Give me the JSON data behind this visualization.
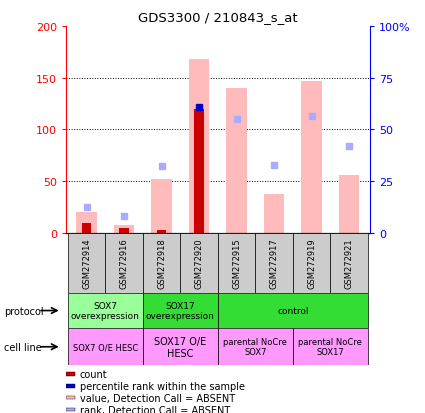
{
  "title": "GDS3300 / 210843_s_at",
  "samples": [
    "GSM272914",
    "GSM272916",
    "GSM272918",
    "GSM272920",
    "GSM272915",
    "GSM272917",
    "GSM272919",
    "GSM272921"
  ],
  "ylim_left": [
    0,
    200
  ],
  "ylim_right": [
    0,
    100
  ],
  "yticks_left": [
    0,
    50,
    100,
    150,
    200
  ],
  "yticks_right": [
    0,
    25,
    50,
    75,
    100
  ],
  "yticklabels_right": [
    "0",
    "25",
    "50",
    "75",
    "100%"
  ],
  "bar_pink_values": [
    20,
    8,
    52,
    168,
    140,
    38,
    147,
    56
  ],
  "bar_red_values": [
    10,
    5,
    3,
    120,
    0,
    0,
    0,
    0
  ],
  "dot_blue_values": [
    null,
    null,
    null,
    122,
    null,
    null,
    null,
    null
  ],
  "dot_purple_values": [
    25,
    16,
    65,
    null,
    110,
    66,
    113,
    84
  ],
  "bar_pink_color": "#ffbbbb",
  "bar_red_color": "#cc0000",
  "dot_blue_color": "#0000cc",
  "dot_purple_color": "#aaaaff",
  "grid_color": "#888888",
  "protocol_groups": [
    {
      "label": "SOX7\noverexpression",
      "cols": [
        0,
        1
      ],
      "color": "#99ff99"
    },
    {
      "label": "SOX17\noverexpression",
      "cols": [
        2,
        3
      ],
      "color": "#33dd33"
    },
    {
      "label": "control",
      "cols": [
        4,
        5,
        6,
        7
      ],
      "color": "#33dd33"
    }
  ],
  "cellline_groups": [
    {
      "label": "SOX7 O/E HESC",
      "cols": [
        0,
        1
      ],
      "color": "#ff99ff",
      "fontsize": 6
    },
    {
      "label": "SOX17 O/E\nHESC",
      "cols": [
        2,
        3
      ],
      "color": "#ff99ff",
      "fontsize": 7
    },
    {
      "label": "parental NoCre\nSOX7",
      "cols": [
        4,
        5
      ],
      "color": "#ff99ff",
      "fontsize": 6
    },
    {
      "label": "parental NoCre\nSOX17",
      "cols": [
        6,
        7
      ],
      "color": "#ff99ff",
      "fontsize": 6
    }
  ],
  "legend_items": [
    {
      "color": "#cc0000",
      "label": "count"
    },
    {
      "color": "#0000cc",
      "label": "percentile rank within the sample"
    },
    {
      "color": "#ffbbbb",
      "label": "value, Detection Call = ABSENT"
    },
    {
      "color": "#aaaaff",
      "label": "rank, Detection Call = ABSENT"
    }
  ]
}
